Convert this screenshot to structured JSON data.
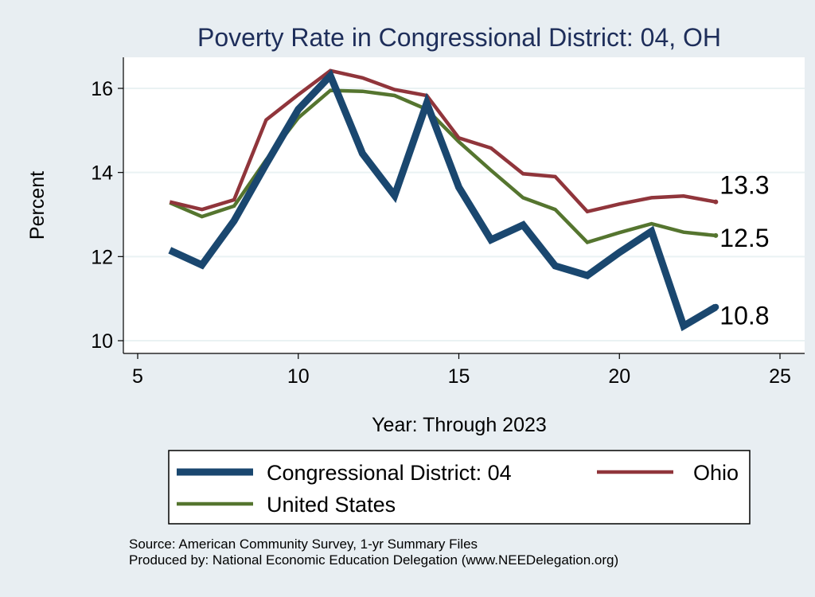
{
  "chart_data": {
    "type": "line",
    "title": "Poverty Rate in Congressional District:  04, OH",
    "xlabel": "Year: Through 2023",
    "ylabel": "Percent",
    "xlim": [
      5,
      25
    ],
    "ylim": [
      10,
      16.5
    ],
    "xticks": [
      5,
      10,
      15,
      20,
      25
    ],
    "yticks": [
      10,
      12,
      14,
      16
    ],
    "grid": true,
    "legend_position": "bottom",
    "series": [
      {
        "name": "Congressional District:  04",
        "color": "#1a476f",
        "width": "thick",
        "x": [
          6,
          7,
          8,
          9,
          10,
          11,
          12,
          13,
          14,
          15,
          16,
          17,
          18,
          19,
          20,
          21,
          22,
          23
        ],
        "y": [
          12.15,
          11.8,
          12.85,
          14.2,
          15.5,
          16.3,
          14.45,
          13.45,
          15.65,
          13.65,
          12.4,
          12.75,
          11.78,
          11.55,
          12.1,
          12.6,
          10.35,
          10.8
        ],
        "end_label": "10.8"
      },
      {
        "name": "Ohio",
        "color": "#90353b",
        "width": "thin",
        "x": [
          6,
          7,
          8,
          9,
          10,
          11,
          12,
          13,
          14,
          15,
          16,
          17,
          18,
          19,
          20,
          21,
          22,
          23
        ],
        "y": [
          13.3,
          13.12,
          13.35,
          15.25,
          15.85,
          16.42,
          16.25,
          15.97,
          15.83,
          14.82,
          14.58,
          13.97,
          13.9,
          13.07,
          13.25,
          13.4,
          13.44,
          13.3
        ],
        "end_label": "13.3"
      },
      {
        "name": "United States",
        "color": "#55752f",
        "width": "thin",
        "x": [
          6,
          7,
          8,
          9,
          10,
          11,
          12,
          13,
          14,
          15,
          16,
          17,
          18,
          19,
          20,
          21,
          22,
          23
        ],
        "y": [
          13.28,
          12.95,
          13.2,
          14.3,
          15.3,
          15.95,
          15.93,
          15.83,
          15.5,
          14.73,
          14.05,
          13.4,
          13.12,
          12.34,
          12.57,
          12.78,
          12.58,
          12.5
        ],
        "end_label": "12.5"
      }
    ]
  },
  "footer": {
    "source": "Source: American Community Survey, 1-yr Summary Files",
    "produced_by": "Produced by: National Economic Education Delegation (www.NEEDelegation.org)"
  }
}
